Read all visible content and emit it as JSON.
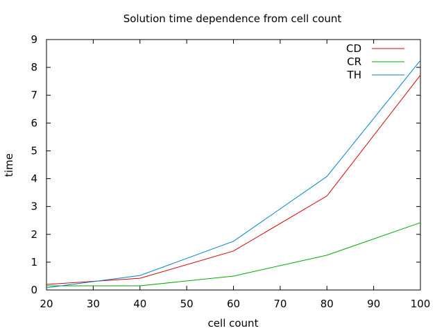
{
  "chart_data": {
    "type": "line",
    "title": "Solution time dependence from cell count",
    "xlabel": "cell count",
    "ylabel": "time",
    "xlim": [
      20,
      100
    ],
    "ylim": [
      0,
      9
    ],
    "xticks": [
      20,
      30,
      40,
      50,
      60,
      70,
      80,
      90,
      100
    ],
    "yticks": [
      0,
      1,
      2,
      3,
      4,
      5,
      6,
      7,
      8,
      9
    ],
    "grid": false,
    "legend_position": "top-right",
    "x": [
      20,
      40,
      60,
      80,
      100
    ],
    "series": [
      {
        "name": "CD",
        "color": "#dd0000",
        "values": [
          0.2,
          0.42,
          1.4,
          3.38,
          7.72
        ]
      },
      {
        "name": "CR",
        "color": "#00aa00",
        "values": [
          0.15,
          0.15,
          0.5,
          1.25,
          2.42
        ]
      },
      {
        "name": "TH",
        "color": "#0080c8",
        "values": [
          0.08,
          0.52,
          1.75,
          4.08,
          8.25
        ]
      }
    ]
  }
}
